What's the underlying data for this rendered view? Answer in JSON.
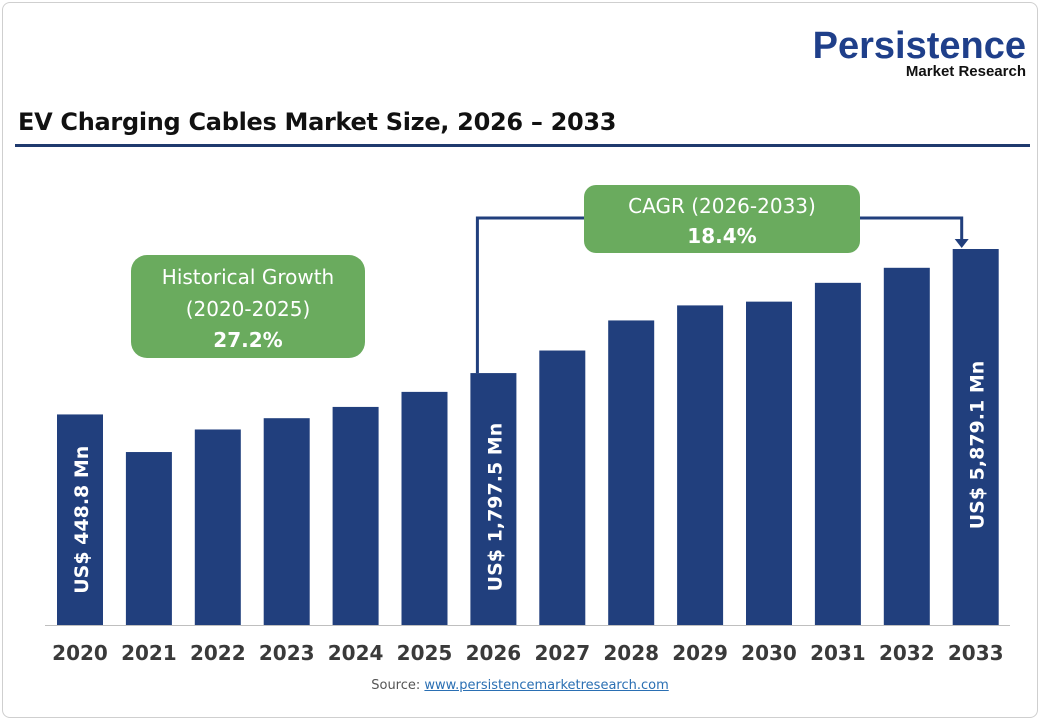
{
  "logo": {
    "line1": "Persistence",
    "line2": "Market Research"
  },
  "source": {
    "label": "Source:",
    "link": "www.persistencemarketresearch.com"
  },
  "chart_data": {
    "type": "bar",
    "title": "EV Charging Cables Market Size, 2026 – 2033",
    "categories": [
      "2020",
      "2021",
      "2022",
      "2023",
      "2024",
      "2025",
      "2026",
      "2027",
      "2028",
      "2029",
      "2030",
      "2031",
      "2032",
      "2033"
    ],
    "values": [
      448.8,
      null,
      null,
      null,
      null,
      null,
      1797.5,
      null,
      null,
      null,
      null,
      null,
      null,
      5879.1
    ],
    "relative_heights_percent_of_2033": [
      56,
      46,
      52,
      55,
      58,
      62,
      67,
      73,
      81,
      85,
      86,
      91,
      95,
      100
    ],
    "unit": "US$ Mn",
    "data_labels": {
      "0": "US$  448.8  Mn",
      "6": "US$ 1,797.5 Mn",
      "13": "US$ 5,879.1 Mn"
    },
    "bar_color": "#213f7d",
    "grid": false,
    "annotations": {
      "historical": {
        "line1": "Historical Growth",
        "line2": "(2020-2025)",
        "value": "27.2%"
      },
      "cagr": {
        "line1": "CAGR (2026-2033)",
        "value": "18.4%"
      },
      "box_color": "#6aab5e",
      "connector_color": "#213f7d"
    }
  }
}
